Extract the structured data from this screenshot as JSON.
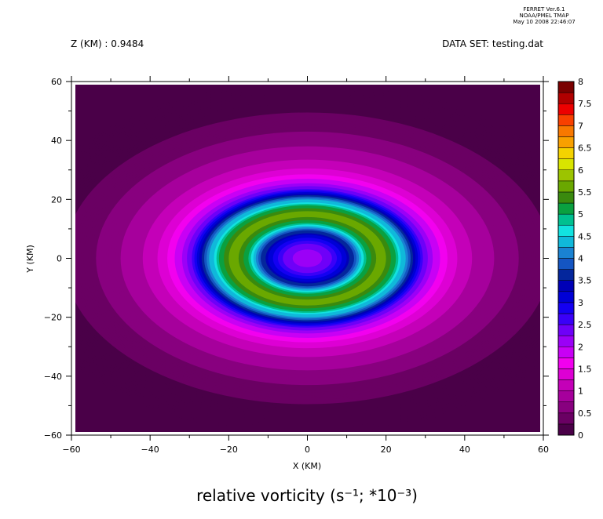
{
  "header": {
    "ferret_line1": "FERRET  Ver.6.1",
    "ferret_line2": "NOAA/PMEL TMAP",
    "ferret_line3": "May 10 2008 22:46:07",
    "z_label": "Z (KM) : 0.9484",
    "dataset_label": "DATA SET: testing.dat"
  },
  "chart_data": {
    "type": "heatmap",
    "title": "relative vorticity (s⁻¹; *10⁻³)",
    "xlabel": "X (KM)",
    "ylabel": "Y (KM)",
    "xlim": [
      -60,
      60
    ],
    "ylim": [
      -60,
      60
    ],
    "x_ticks": [
      "−60",
      "−40",
      "−20",
      "0",
      "20",
      "40",
      "60"
    ],
    "y_ticks": [
      "60",
      "40",
      "20",
      "0",
      "−20",
      "−40",
      "−60"
    ],
    "x_tick_values": [
      -60,
      -40,
      -20,
      0,
      20,
      40,
      60
    ],
    "y_tick_values": [
      60,
      40,
      20,
      0,
      -20,
      -40,
      -60
    ],
    "colorbar": {
      "min": 0,
      "max": 8,
      "step": 0.25,
      "labels": [
        "8",
        "7.5",
        "7",
        "6.5",
        "6",
        "5.5",
        "5",
        "4.5",
        "4",
        "3.5",
        "3",
        "2.5",
        "2",
        "1.5",
        "1",
        "0.5",
        "0"
      ],
      "label_values": [
        8,
        7.5,
        7,
        6.5,
        6,
        5.5,
        5,
        4.5,
        4,
        3.5,
        3,
        2.5,
        2,
        1.5,
        1,
        0.5,
        0
      ],
      "colors": [
        "#4a0048",
        "#6a0063",
        "#88007f",
        "#a6009c",
        "#c400b8",
        "#dd00d4",
        "#f200ef",
        "#c800f5",
        "#9b00f7",
        "#6e00f8",
        "#3a00f8",
        "#1400f2",
        "#0000d6",
        "#0000b6",
        "#04269c",
        "#1455c2",
        "#1a82d2",
        "#10b8da",
        "#12e2e0",
        "#00c090",
        "#0aa040",
        "#3a8a0e",
        "#6aa800",
        "#9cc400",
        "#d8e400",
        "#f4d200",
        "#f8a000",
        "#f87800",
        "#f84000",
        "#ec0000",
        "#b00000",
        "#7a0000"
      ]
    },
    "field": {
      "background_level": 0.2,
      "center": [
        0,
        0
      ],
      "center_value": 2.1,
      "radial_profile": [
        {
          "r": 0,
          "v": 2.1
        },
        {
          "r": 3,
          "v": 2.2
        },
        {
          "r": 6,
          "v": 2.6
        },
        {
          "r": 9,
          "v": 3.5
        },
        {
          "r": 11,
          "v": 4.4
        },
        {
          "r": 13,
          "v": 5.2
        },
        {
          "r": 15,
          "v": 5.6
        },
        {
          "r": 17,
          "v": 5.4
        },
        {
          "r": 19,
          "v": 4.7
        },
        {
          "r": 21,
          "v": 3.8
        },
        {
          "r": 23,
          "v": 2.8
        },
        {
          "r": 25,
          "v": 2.1
        },
        {
          "r": 28,
          "v": 1.6
        },
        {
          "r": 31,
          "v": 1.2
        },
        {
          "r": 35,
          "v": 0.9
        },
        {
          "r": 39,
          "v": 0.7
        },
        {
          "r": 43,
          "v": 0.5
        },
        {
          "r": 47,
          "v": 0.3
        },
        {
          "r": 52,
          "v": 0.2
        },
        {
          "r": 80,
          "v": 0.2
        }
      ],
      "anisotropy_x": 1.25
    },
    "grid": false,
    "legend": "right colorbar"
  }
}
